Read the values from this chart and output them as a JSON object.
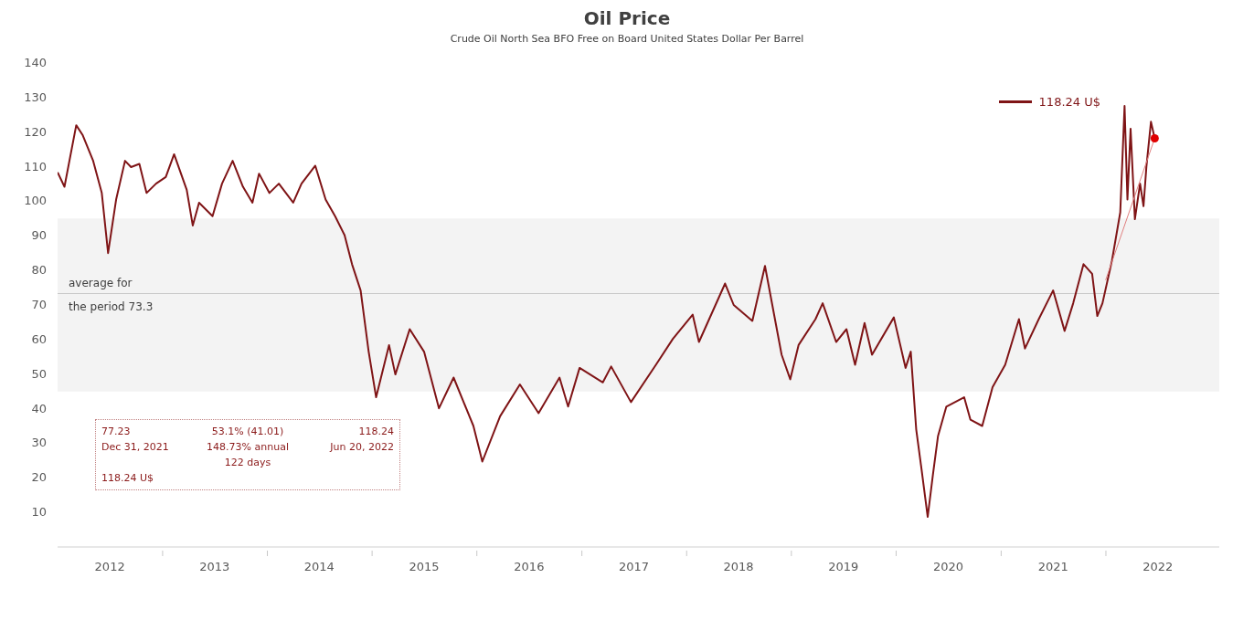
{
  "chart_data": {
    "type": "line",
    "title": "Oil Price",
    "subtitle": "Crude Oil North Sea BFO Free on Board United States Dollar Per Barrel",
    "series": [
      {
        "name": "118.24 U$",
        "color": "#7f1416",
        "marker": "none",
        "line_style": "solid",
        "x": [
          "2012-01-01",
          "2012-01-25",
          "2012-03-06",
          "2012-03-28",
          "2012-05-04",
          "2012-06-03",
          "2012-06-25",
          "2012-07-23",
          "2012-08-23",
          "2012-09-13",
          "2012-10-12",
          "2012-11-06",
          "2012-12-09",
          "2013-01-12",
          "2013-02-10",
          "2013-03-26",
          "2013-04-16",
          "2013-05-08",
          "2013-06-24",
          "2013-07-27",
          "2013-09-02",
          "2013-10-08",
          "2013-11-10",
          "2013-12-03",
          "2014-01-08",
          "2014-02-10",
          "2014-04-01",
          "2014-04-30",
          "2014-06-17",
          "2014-07-23",
          "2014-08-25",
          "2014-09-27",
          "2014-10-23",
          "2014-11-22",
          "2014-12-20",
          "2015-01-15",
          "2015-03-01",
          "2015-03-23",
          "2015-05-12",
          "2015-07-01",
          "2015-08-22",
          "2015-10-12",
          "2015-12-20",
          "2016-01-20",
          "2016-03-22",
          "2016-05-30",
          "2016-08-03",
          "2016-10-15",
          "2016-11-14",
          "2016-12-24",
          "2017-03-15",
          "2017-04-13",
          "2017-06-21",
          "2017-09-16",
          "2017-11-14",
          "2018-01-22",
          "2018-02-13",
          "2018-05-15",
          "2018-06-14",
          "2018-08-18",
          "2018-10-01",
          "2018-11-28",
          "2018-12-28",
          "2019-01-26",
          "2019-03-26",
          "2019-04-20",
          "2019-06-06",
          "2019-07-12",
          "2019-08-11",
          "2019-09-13",
          "2019-10-09",
          "2019-12-24",
          "2020-02-03",
          "2020-02-21",
          "2020-03-11",
          "2020-03-29",
          "2020-04-20",
          "2020-05-08",
          "2020-05-26",
          "2020-06-24",
          "2020-08-25",
          "2020-09-16",
          "2020-10-27",
          "2020-12-02",
          "2021-01-15",
          "2021-03-04",
          "2021-03-25",
          "2021-05-12",
          "2021-07-01",
          "2021-08-10",
          "2021-09-09",
          "2021-10-15",
          "2021-11-14",
          "2021-12-02",
          "2021-12-20",
          "2022-01-22",
          "2022-02-20",
          "2022-03-07",
          "2022-03-17",
          "2022-03-28",
          "2022-04-12",
          "2022-04-30",
          "2022-05-12",
          "2022-05-22",
          "2022-06-07",
          "2022-06-20"
        ],
        "values": [
          108.4,
          104.2,
          122,
          119.2,
          111.7,
          102.4,
          85,
          100.5,
          111.7,
          109.9,
          110.8,
          102.4,
          105.1,
          107,
          113.6,
          103.3,
          93,
          99.6,
          95.7,
          105.1,
          111.7,
          104.2,
          99.6,
          108,
          102.4,
          105.1,
          99.6,
          105.1,
          110.3,
          100.5,
          95.7,
          90.2,
          81.8,
          74.2,
          56.5,
          43.3,
          58.4,
          49.9,
          63,
          56.5,
          40.1,
          49,
          35,
          24.7,
          37.8,
          47,
          38.7,
          49,
          40.6,
          51.8,
          47.6,
          52.2,
          41.9,
          52.7,
          60.2,
          67.2,
          59.3,
          76.2,
          70,
          65.4,
          81.3,
          55.6,
          48.5,
          58.4,
          65.9,
          70.5,
          59.3,
          63,
          52.7,
          64.8,
          55.6,
          66.4,
          51.8,
          56.5,
          34,
          22.8,
          8.7,
          20.8,
          32.1,
          40.6,
          43.3,
          36.8,
          35,
          46.2,
          52.7,
          65.9,
          57.4,
          65.9,
          74.2,
          62.5,
          70.5,
          81.8,
          79,
          66.8,
          70.5,
          82.8,
          96.8,
          127.6,
          100.5,
          121,
          94.8,
          105.1,
          98.6,
          109.9,
          123,
          118.2
        ]
      },
      {
        "type": "line",
        "color": "#e08080",
        "marker": "none",
        "line_style": "solid",
        "x": [
          "2021-12-31",
          "2022-06-20"
        ],
        "values": [
          77.2,
          118.2
        ]
      },
      {
        "type": "scatter",
        "color": "#e00000",
        "marker": "circle",
        "x": [
          "2022-06-20"
        ],
        "values": [
          118.2
        ]
      }
    ],
    "xlim": [
      "2012-01-01",
      "2023-01-31"
    ],
    "xticks": [
      {
        "value": "2012-07-01",
        "label": "2012"
      },
      {
        "value": "2013-01-01",
        "label": null
      },
      {
        "value": "2013-07-01",
        "label": "2013"
      },
      {
        "value": "2014-01-01",
        "label": null
      },
      {
        "value": "2014-07-01",
        "label": "2014"
      },
      {
        "value": "2015-01-01",
        "label": null
      },
      {
        "value": "2015-07-01",
        "label": "2015"
      },
      {
        "value": "2016-01-01",
        "label": null
      },
      {
        "value": "2016-07-01",
        "label": "2016"
      },
      {
        "value": "2017-01-01",
        "label": null
      },
      {
        "value": "2017-07-01",
        "label": "2017"
      },
      {
        "value": "2018-01-01",
        "label": null
      },
      {
        "value": "2018-07-01",
        "label": "2018"
      },
      {
        "value": "2019-01-01",
        "label": null
      },
      {
        "value": "2019-07-01",
        "label": "2019"
      },
      {
        "value": "2020-01-01",
        "label": null
      },
      {
        "value": "2020-07-01",
        "label": "2020"
      },
      {
        "value": "2021-01-01",
        "label": null
      },
      {
        "value": "2021-07-01",
        "label": "2021"
      },
      {
        "value": "2022-01-01",
        "label": null
      },
      {
        "value": "2022-07-01",
        "label": "2022"
      }
    ],
    "ylim": [
      0,
      140
    ],
    "yticks": [
      10,
      20,
      30,
      40,
      50,
      60,
      70,
      80,
      90,
      100,
      110,
      120,
      130,
      140
    ],
    "grid": false,
    "legend": "top right",
    "ref_lines": [
      {
        "axis": "y",
        "value": 73.3,
        "label": "average for the period 73.3",
        "color": "#c8c8c8"
      }
    ],
    "bands": [
      {
        "axis": "y",
        "from": 45,
        "to": 95,
        "color": "#f3f3f3"
      }
    ],
    "annotations": [
      "77.23",
      "53.1% (41.01)",
      "118.24",
      "Dec 31, 2021",
      "148.73% annual",
      "Jun 20, 2022",
      "122 days",
      "118.24 U$"
    ]
  }
}
